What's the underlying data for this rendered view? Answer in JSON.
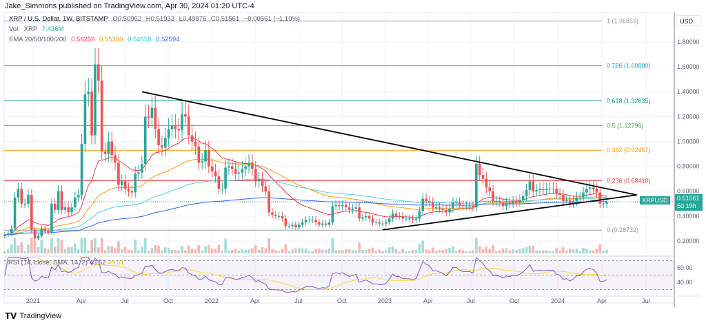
{
  "header": {
    "published": "Jake_Simmons published on TradingView.com, Apr 30, 2024 01:20 UTC-4"
  },
  "legend": {
    "symbol": "XRP / U.S. Dollar, 1W, BITSTAMP",
    "ohlc": {
      "o": "O0.50962",
      "h": "H0.51933",
      "l": "L0.49876",
      "c": "C0.51561",
      "chg": "−0.00561 (−1.10%)"
    },
    "vol_label": "Vol · XRP",
    "vol_value": "7.436M",
    "ema_label": "EMA 20/50/100/200",
    "ema_values": [
      "0.56259",
      "0.55350",
      "0.54658",
      "0.52594"
    ]
  },
  "colors": {
    "up": "#26a69a",
    "down": "#ef5350",
    "ema20": "#f23645",
    "ema50": "#ff9800",
    "ema100": "#4dd0e1",
    "ema200": "#2962ff",
    "rsi": "#7e57c2",
    "rsi_sma": "#fdd835",
    "trendline": "#000000"
  },
  "price_axis": {
    "currency": "USD",
    "ticks": [
      "1.80000",
      "1.60000",
      "1.40000",
      "1.20000",
      "1.00000",
      "0.80000",
      "0.60000",
      "0.40000",
      "0.20000"
    ]
  },
  "last_price": {
    "symbol": "XRPUSD",
    "price": "0.51561",
    "countdown": "5d 19h"
  },
  "time_axis": [
    "2021",
    "Apr",
    "Jul",
    "Oct",
    "2022",
    "Apr",
    "Jul",
    "Oct",
    "2023",
    "Apr",
    "Jul",
    "Oct",
    "2024",
    "Apr",
    "Jul"
  ],
  "fib_levels": [
    {
      "label": "1 (1.96859)",
      "price": 1.96859,
      "color": "#9598a1"
    },
    {
      "label": "0.786 (1.60880)",
      "price": 1.6088,
      "color": "#00bcd4"
    },
    {
      "label": "0.618 (1.32635)",
      "price": 1.32635,
      "color": "#089981"
    },
    {
      "label": "0.5 (1.12796)",
      "price": 1.12796,
      "color": "#4caf50"
    },
    {
      "label": "0.382 (0.92957)",
      "price": 0.92957,
      "color": "#ff9800"
    },
    {
      "label": "0.236 (0.68410)",
      "price": 0.6841,
      "color": "#f23645"
    },
    {
      "label": "0 (0.28732)",
      "price": 0.28732,
      "color": "#9598a1"
    }
  ],
  "rsi": {
    "label": "RSI (14, close, SMA, 14, 2)",
    "value": "43.52",
    "sma": "49.51",
    "ticks": [
      "60.00",
      "40.00"
    ]
  },
  "chart_data": {
    "type": "candlestick",
    "interval": "1W",
    "start": "2020-11-02",
    "closes": [
      0.25,
      0.26,
      0.3,
      0.55,
      0.62,
      0.5,
      0.5,
      0.57,
      0.29,
      0.22,
      0.24,
      0.3,
      0.28,
      0.27,
      0.5,
      0.45,
      0.6,
      0.45,
      0.47,
      0.43,
      0.47,
      0.55,
      0.57,
      0.98,
      1.38,
      1.4,
      1.05,
      1.62,
      1.49,
      0.92,
      0.9,
      1.0,
      0.89,
      0.83,
      0.65,
      0.68,
      0.62,
      0.6,
      0.59,
      0.74,
      0.75,
      0.82,
      1.2,
      1.19,
      1.27,
      1.1,
      0.97,
      0.95,
      1.03,
      1.1,
      1.13,
      1.1,
      1.09,
      1.22,
      1.2,
      1.05,
      1.0,
      0.96,
      0.83,
      0.84,
      0.93,
      0.8,
      0.76,
      0.72,
      0.62,
      0.62,
      0.79,
      0.8,
      0.78,
      0.74,
      0.75,
      0.78,
      0.8,
      0.83,
      0.78,
      0.68,
      0.7,
      0.64,
      0.6,
      0.43,
      0.41,
      0.4,
      0.4,
      0.38,
      0.32,
      0.32,
      0.33,
      0.31,
      0.33,
      0.35,
      0.37,
      0.37,
      0.37,
      0.35,
      0.33,
      0.34,
      0.33,
      0.35,
      0.48,
      0.49,
      0.48,
      0.49,
      0.47,
      0.45,
      0.46,
      0.47,
      0.38,
      0.39,
      0.4,
      0.38,
      0.35,
      0.35,
      0.34,
      0.34,
      0.35,
      0.38,
      0.42,
      0.4,
      0.4,
      0.38,
      0.38,
      0.38,
      0.37,
      0.38,
      0.44,
      0.54,
      0.52,
      0.51,
      0.47,
      0.47,
      0.46,
      0.45,
      0.43,
      0.46,
      0.51,
      0.51,
      0.49,
      0.48,
      0.48,
      0.48,
      0.47,
      0.82,
      0.73,
      0.7,
      0.63,
      0.6,
      0.52,
      0.52,
      0.51,
      0.48,
      0.51,
      0.5,
      0.52,
      0.51,
      0.53,
      0.56,
      0.61,
      0.68,
      0.6,
      0.61,
      0.62,
      0.61,
      0.62,
      0.62,
      0.62,
      0.58,
      0.57,
      0.52,
      0.53,
      0.5,
      0.52,
      0.55,
      0.55,
      0.59,
      0.62,
      0.63,
      0.62,
      0.59,
      0.5,
      0.5,
      0.51561
    ],
    "trendlines": [
      {
        "from": [
          "2021-08-16",
          1.4
        ],
        "to": [
          "2024-06-17",
          0.57
        ]
      },
      {
        "from": [
          "2023-01-02",
          0.29
        ],
        "to": [
          "2024-06-17",
          0.57
        ]
      }
    ],
    "ylim": [
      0.0,
      2.04
    ]
  }
}
